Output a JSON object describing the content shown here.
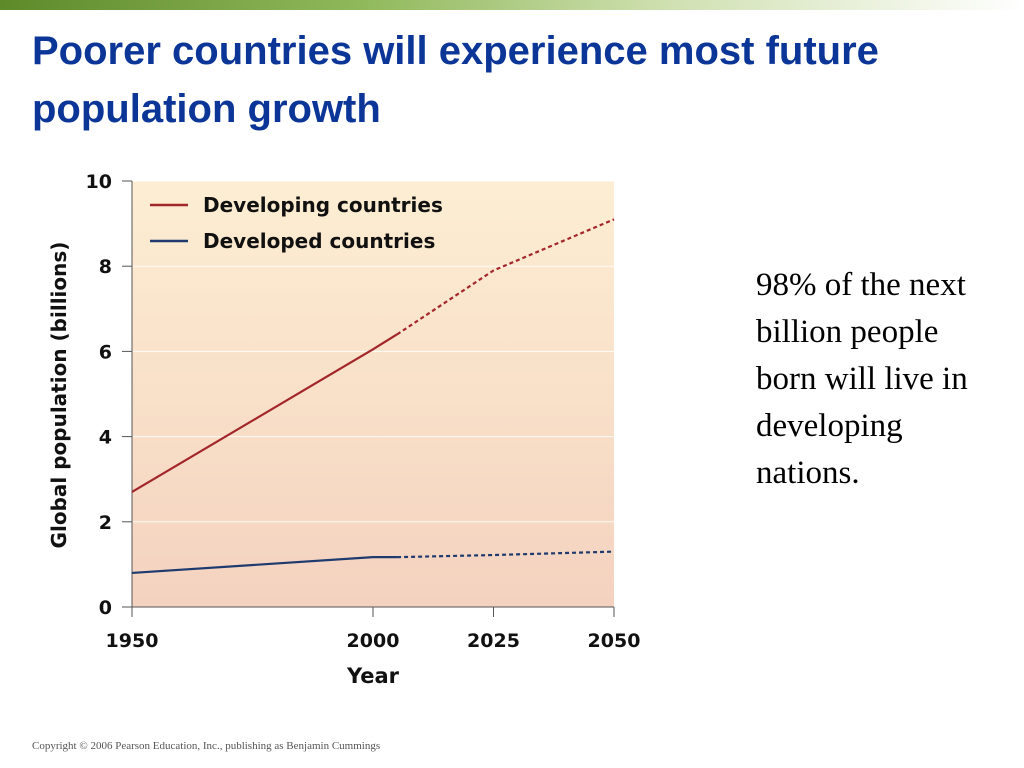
{
  "slide": {
    "title": "Poorer countries will experience most future population growth",
    "note": "98% of the next billion people born will live in developing nations.",
    "copyright": "Copyright © 2006 Pearson Education, Inc., publishing as Benjamin Cummings"
  },
  "colors": {
    "title": "#0b3596",
    "developing": "#a3262a",
    "developed": "#1e3a6e",
    "plot_bg_top": "#fdeed3",
    "plot_bg_bottom": "#f4d2bf"
  },
  "chart_data": {
    "type": "line",
    "xlabel": "Year",
    "ylabel": "Global population (billions)",
    "xlim": [
      1950,
      2050
    ],
    "ylim": [
      0,
      10
    ],
    "x_ticks": [
      1950,
      2000,
      2025,
      2050
    ],
    "y_ticks": [
      0,
      2,
      4,
      6,
      8,
      10
    ],
    "grid": true,
    "legend_position": "top-left",
    "series": [
      {
        "name": "Developing countries",
        "color": "#a3262a",
        "actual": [
          [
            1950,
            2.7
          ],
          [
            2000,
            6.05
          ],
          [
            2005,
            6.4
          ]
        ],
        "projected": [
          [
            2005,
            6.4
          ],
          [
            2025,
            7.9
          ],
          [
            2050,
            9.1
          ]
        ]
      },
      {
        "name": "Developed countries",
        "color": "#1e3a6e",
        "actual": [
          [
            1950,
            0.8
          ],
          [
            2000,
            1.17
          ],
          [
            2005,
            1.17
          ]
        ],
        "projected": [
          [
            2005,
            1.17
          ],
          [
            2025,
            1.22
          ],
          [
            2050,
            1.3
          ]
        ]
      }
    ]
  }
}
